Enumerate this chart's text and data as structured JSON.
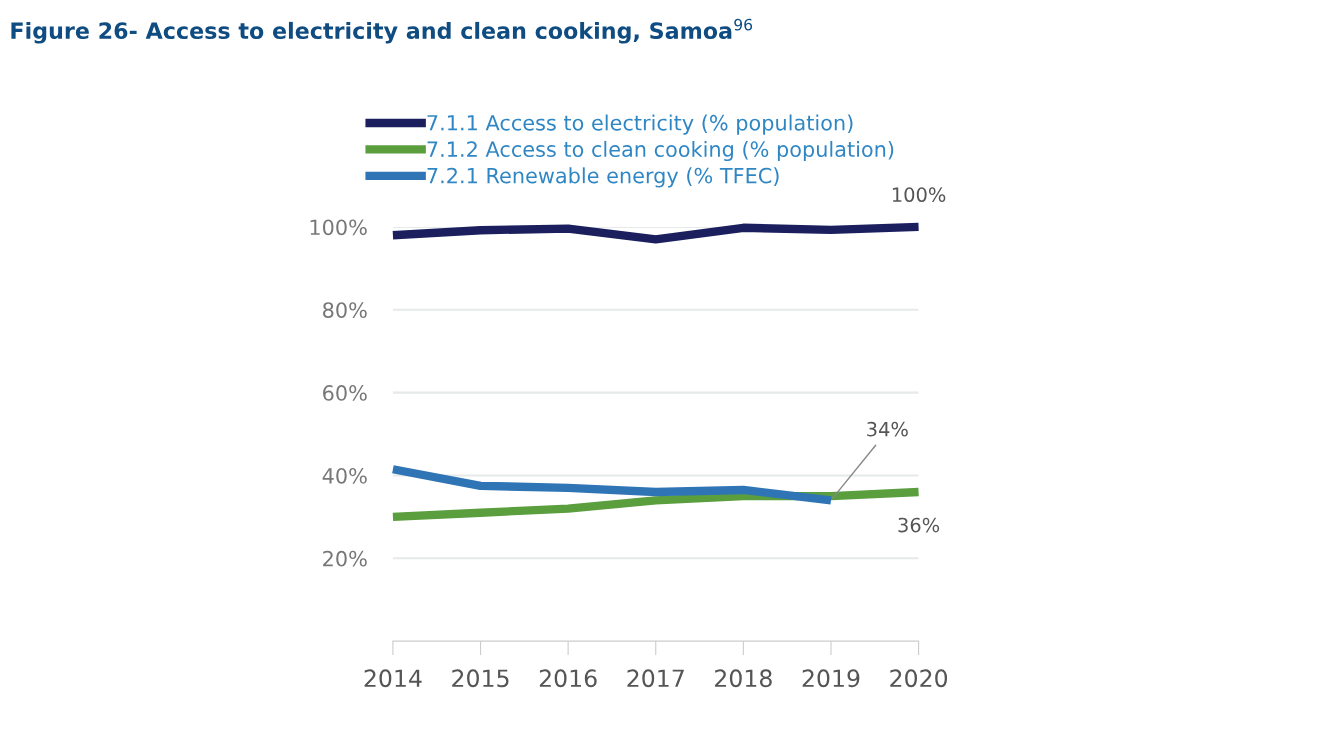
{
  "chart_data": {
    "type": "line",
    "title": "Figure 26- Access to electricity and clean cooking, Samoa$^{96}$",
    "categories": [
      "2014",
      "2015",
      "2016",
      "2017",
      "2018",
      "2019",
      "2020"
    ],
    "series": [
      {
        "name": "7.1.1 Access to electricity (% population)",
        "color": "#1b1f5e",
        "values": [
          98,
          99.2,
          99.6,
          97,
          99.8,
          99.3,
          100
        ]
      },
      {
        "name": "7.1.2 Access to clean cooking (% population)",
        "color": "#5a9e3e",
        "values": [
          30,
          31,
          32,
          34,
          35,
          35,
          36
        ]
      },
      {
        "name": "7.2.1 Renewable energy (% TFEC)",
        "color": "#2f74b5",
        "values": [
          41.5,
          37.5,
          37,
          36,
          36.5,
          34,
          null
        ]
      }
    ],
    "ylim": [
      0,
      100
    ],
    "yticks": [
      {
        "value": 20,
        "label": "20%"
      },
      {
        "value": 40,
        "label": "40%"
      },
      {
        "value": 60,
        "label": "60%"
      },
      {
        "value": 80,
        "label": "80%"
      },
      {
        "value": 100,
        "label": "100%"
      }
    ],
    "grid": "y",
    "legend": "top left",
    "marker": "none",
    "line_style": "solid",
    "annotations": [
      {
        "text": "100%",
        "x": "2020",
        "y": 100
      },
      {
        "text": "34%",
        "x": "2019",
        "y": 34
      },
      {
        "text": "36%",
        "x": "2020",
        "y": 36
      }
    ]
  }
}
